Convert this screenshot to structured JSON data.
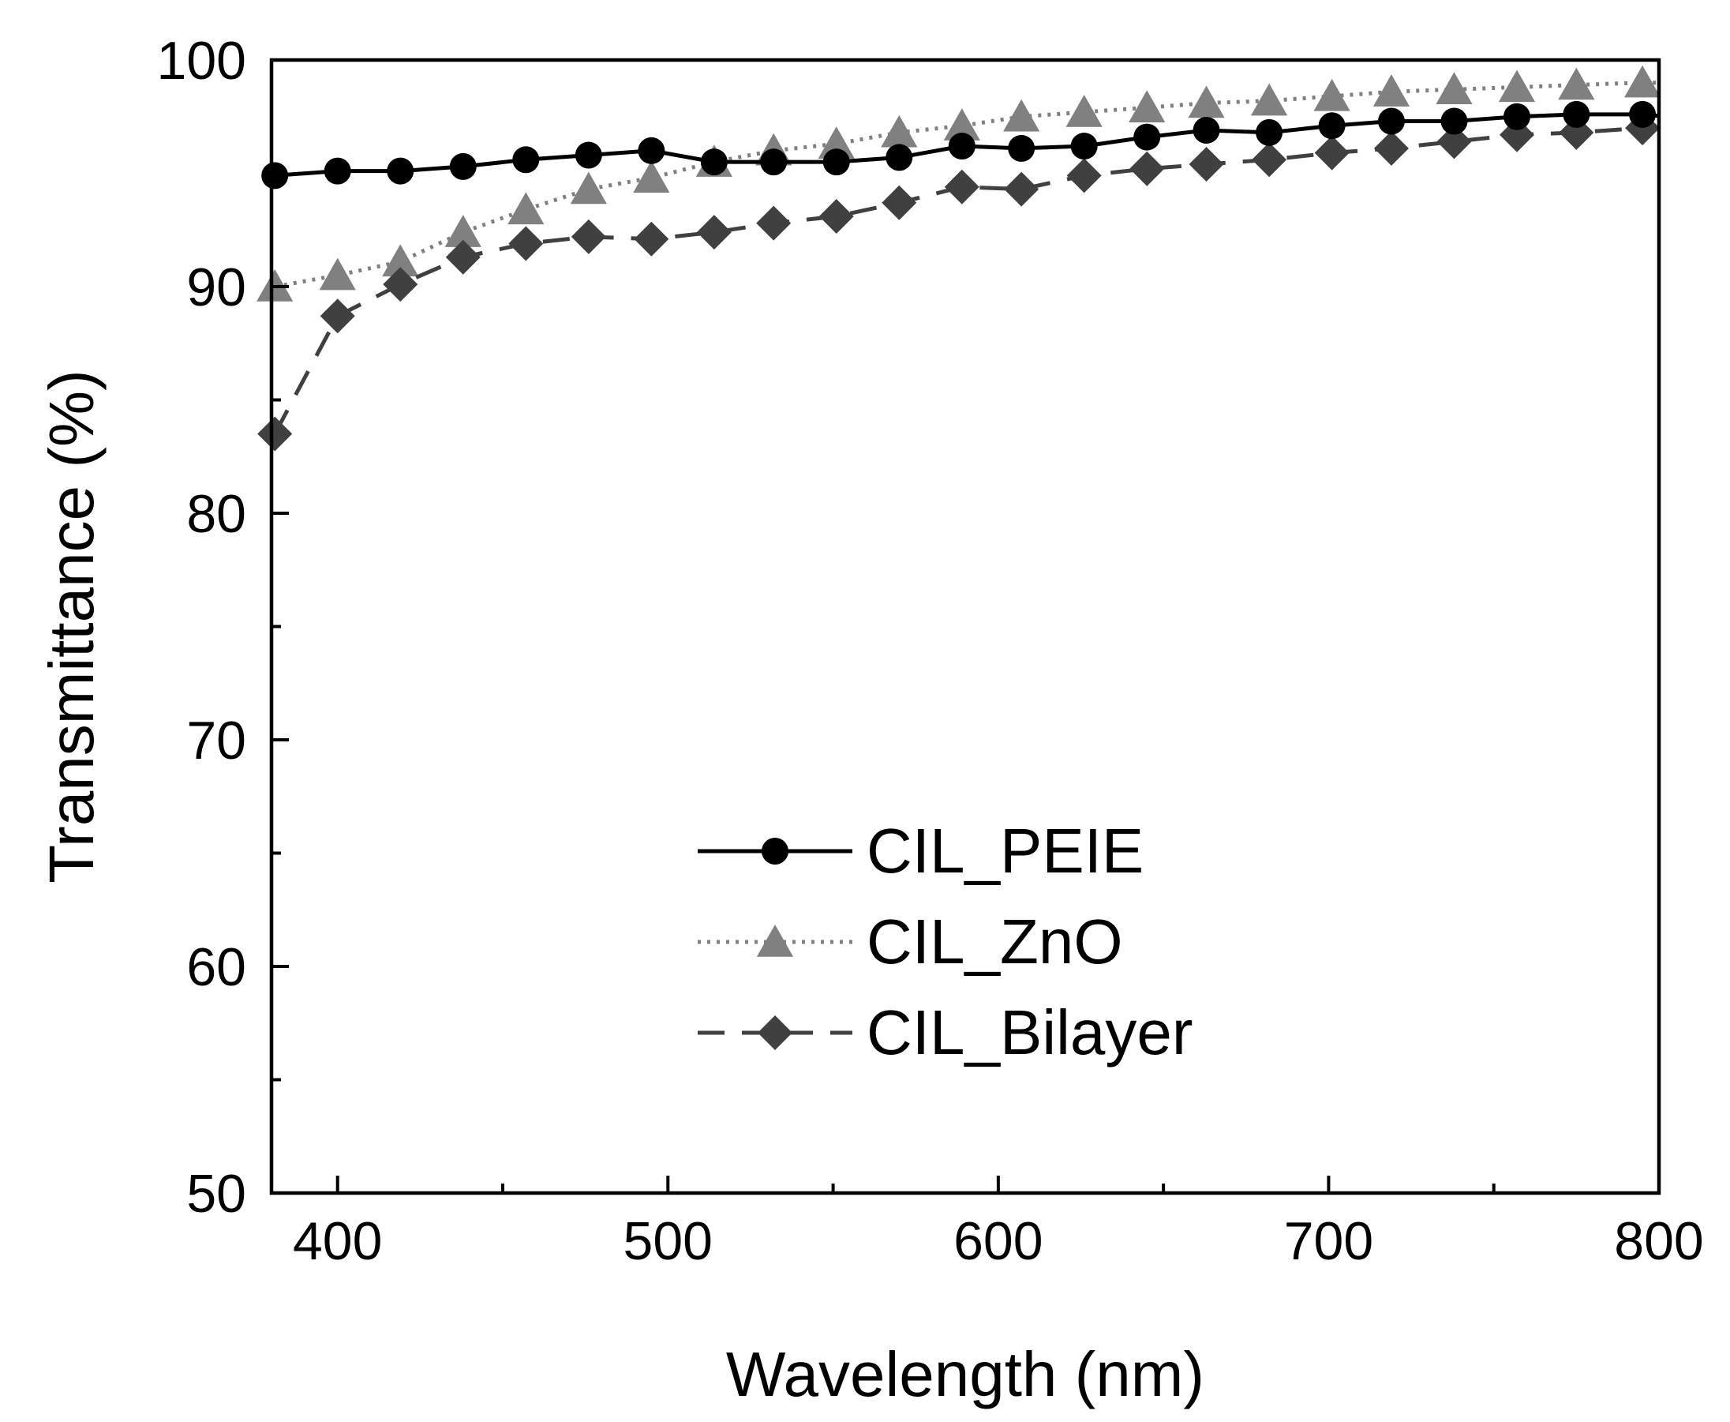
{
  "chart_data": {
    "type": "line",
    "xlabel": "Wavelength (nm)",
    "ylabel": "Transmittance (%)",
    "xlim": [
      380,
      800
    ],
    "ylim": [
      50,
      100
    ],
    "x_ticks": [
      400,
      500,
      600,
      700,
      800
    ],
    "y_ticks": [
      50,
      60,
      70,
      80,
      90,
      100
    ],
    "x_tick_labels": [
      "400",
      "500",
      "600",
      "700",
      "800"
    ],
    "y_tick_labels": [
      "50",
      "60",
      "70",
      "80",
      "90",
      "100"
    ],
    "grid": false,
    "legend_position": "center",
    "series": [
      {
        "name": "CIL_PEIE",
        "color": "#000000",
        "line_style": "solid",
        "marker": "circle",
        "x": [
          381,
          400,
          419,
          438,
          457,
          476,
          495,
          514,
          532,
          551,
          570,
          589,
          607,
          626,
          645,
          663,
          682,
          701,
          719,
          738,
          757,
          775,
          795
        ],
        "y": [
          94.9,
          95.1,
          95.1,
          95.3,
          95.6,
          95.8,
          96.0,
          95.5,
          95.5,
          95.5,
          95.7,
          96.2,
          96.1,
          96.2,
          96.6,
          96.9,
          96.8,
          97.1,
          97.3,
          97.3,
          97.5,
          97.6,
          97.6
        ]
      },
      {
        "name": "CIL_ZnO",
        "color": "#808080",
        "line_style": "dotted",
        "marker": "triangle",
        "x": [
          381,
          400,
          419,
          438,
          457,
          476,
          495,
          514,
          532,
          551,
          570,
          589,
          607,
          626,
          645,
          663,
          682,
          701,
          719,
          738,
          757,
          775,
          795
        ],
        "y": [
          90.0,
          90.5,
          91.1,
          92.4,
          93.4,
          94.3,
          94.8,
          95.5,
          96.0,
          96.3,
          96.8,
          97.1,
          97.5,
          97.7,
          97.9,
          98.1,
          98.2,
          98.4,
          98.6,
          98.7,
          98.8,
          98.9,
          99.0
        ]
      },
      {
        "name": "CIL_Bilayer",
        "color": "#404040",
        "line_style": "dashed",
        "marker": "diamond",
        "x": [
          381,
          400,
          419,
          438,
          457,
          476,
          495,
          514,
          532,
          551,
          570,
          589,
          607,
          626,
          645,
          663,
          682,
          701,
          719,
          738,
          757,
          775,
          795
        ],
        "y": [
          83.5,
          88.7,
          90.1,
          91.3,
          91.9,
          92.2,
          92.1,
          92.4,
          92.8,
          93.1,
          93.7,
          94.4,
          94.3,
          94.9,
          95.2,
          95.4,
          95.6,
          95.9,
          96.1,
          96.4,
          96.7,
          96.8,
          97.0
        ]
      }
    ]
  }
}
